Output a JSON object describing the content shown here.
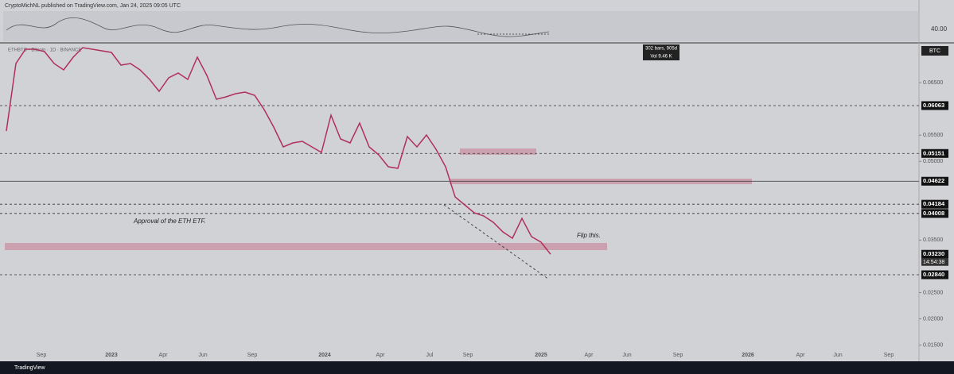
{
  "header": {
    "attribution": "CryptoMichNL published on TradingView.com, Jan 24, 2025 09:05 UTC",
    "brand": "TradingView"
  },
  "rsi": {
    "level_label": "40.00"
  },
  "tooltip": {
    "bars": "302 bars, 905d",
    "volume": "Vol 9.46 K"
  },
  "symbol": {
    "legend": "ETHBTC · Bitcoin · 1D · BINANCE",
    "currency": "BTC"
  },
  "chart_data": {
    "type": "line",
    "series": [
      {
        "name": "ETH / Bitcoin",
        "color": "#b0305a",
        "values": [
          0.05579,
          0.06865,
          0.07137,
          0.07137,
          0.07092,
          0.06865,
          0.06744,
          0.06986,
          0.07167,
          0.07137,
          0.07107,
          0.07077,
          0.06835,
          0.06865,
          0.06744,
          0.06562,
          0.06335,
          0.06593,
          0.06683,
          0.06562,
          0.06986,
          0.06638,
          0.06184,
          0.06229,
          0.0629,
          0.0632,
          0.0626,
          0.05987,
          0.05654,
          0.05276,
          0.05352,
          0.05382,
          0.05276,
          0.0517,
          0.05881,
          0.05428,
          0.05352,
          0.0573,
          0.05276,
          0.05125,
          0.04898,
          0.04868,
          0.05473,
          0.05276,
          0.05503,
          0.05231,
          0.04898,
          0.04323,
          0.04172,
          0.0402,
          0.0396,
          0.03839,
          0.03657,
          0.03536,
          0.03915,
          0.03566,
          0.03461,
          0.0323
        ]
      }
    ],
    "ylim": [
      0.01418,
      0.07243
    ],
    "yticks": [
      {
        "value": 0.015,
        "label": "0.01500"
      },
      {
        "value": 0.02,
        "label": "0.02000"
      },
      {
        "value": 0.025,
        "label": "0.02500"
      },
      {
        "value": 0.035,
        "label": "0.03500"
      },
      {
        "value": 0.05,
        "label": "0.05000"
      },
      {
        "value": 0.055,
        "label": "0.05500"
      },
      {
        "value": 0.065,
        "label": "0.06500"
      }
    ],
    "price_levels": [
      {
        "value": 0.06063,
        "label": "0.06063",
        "style": "dashed"
      },
      {
        "value": 0.05151,
        "label": "0.05151",
        "style": "dashed"
      },
      {
        "value": 0.04622,
        "label": "0.04622",
        "style": "solid"
      },
      {
        "value": 0.04184,
        "label": "0.04184",
        "style": "dashed"
      },
      {
        "value": 0.04008,
        "label": "0.04008",
        "style": "dashed"
      },
      {
        "value": 0.0323,
        "label": "0.03230",
        "style": "none"
      },
      {
        "value": 0.0284,
        "label": "0.02840",
        "style": "dashed"
      }
    ],
    "countdown": "14:54:38",
    "time_labels": [
      "Sep",
      "2023",
      "Apr",
      "Jun",
      "Sep",
      "2024",
      "Apr",
      "Jul",
      "Sep",
      "2025",
      "Apr",
      "Jun",
      "Sep",
      "2026",
      "Apr",
      "Jun",
      "Sep"
    ],
    "annotations": [
      "Approval of the ETH ETF.",
      "Flip this."
    ]
  }
}
